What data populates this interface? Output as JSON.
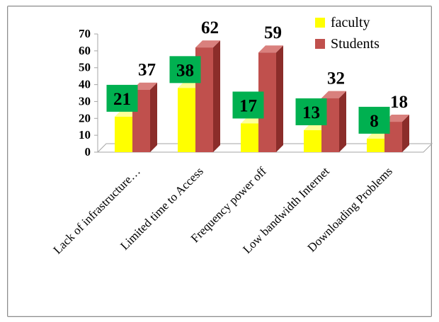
{
  "chart_data": {
    "type": "bar",
    "categories": [
      "Lack of infrastructure…",
      "Limited time to Access",
      "Frequency power off",
      "Low bandwidth Internet",
      "Downloading Problems"
    ],
    "series": [
      {
        "name": "faculty",
        "values": [
          21,
          38,
          17,
          13,
          8
        ],
        "color": "#ffff00",
        "side_color": "#c9c900",
        "top_color": "#ffff99"
      },
      {
        "name": "Students",
        "values": [
          37,
          62,
          59,
          32,
          18
        ],
        "color": "#c0504d",
        "side_color": "#8b2d2a",
        "top_color": "#d9807d"
      }
    ],
    "ylim": [
      0,
      70
    ],
    "yticks": [
      0,
      10,
      20,
      30,
      40,
      50,
      60,
      70
    ],
    "title": "",
    "xlabel": "",
    "ylabel": "",
    "legend": {
      "position": "top-right"
    },
    "grid": false,
    "three_d": true,
    "faculty_label_box_color": "#00b050"
  }
}
